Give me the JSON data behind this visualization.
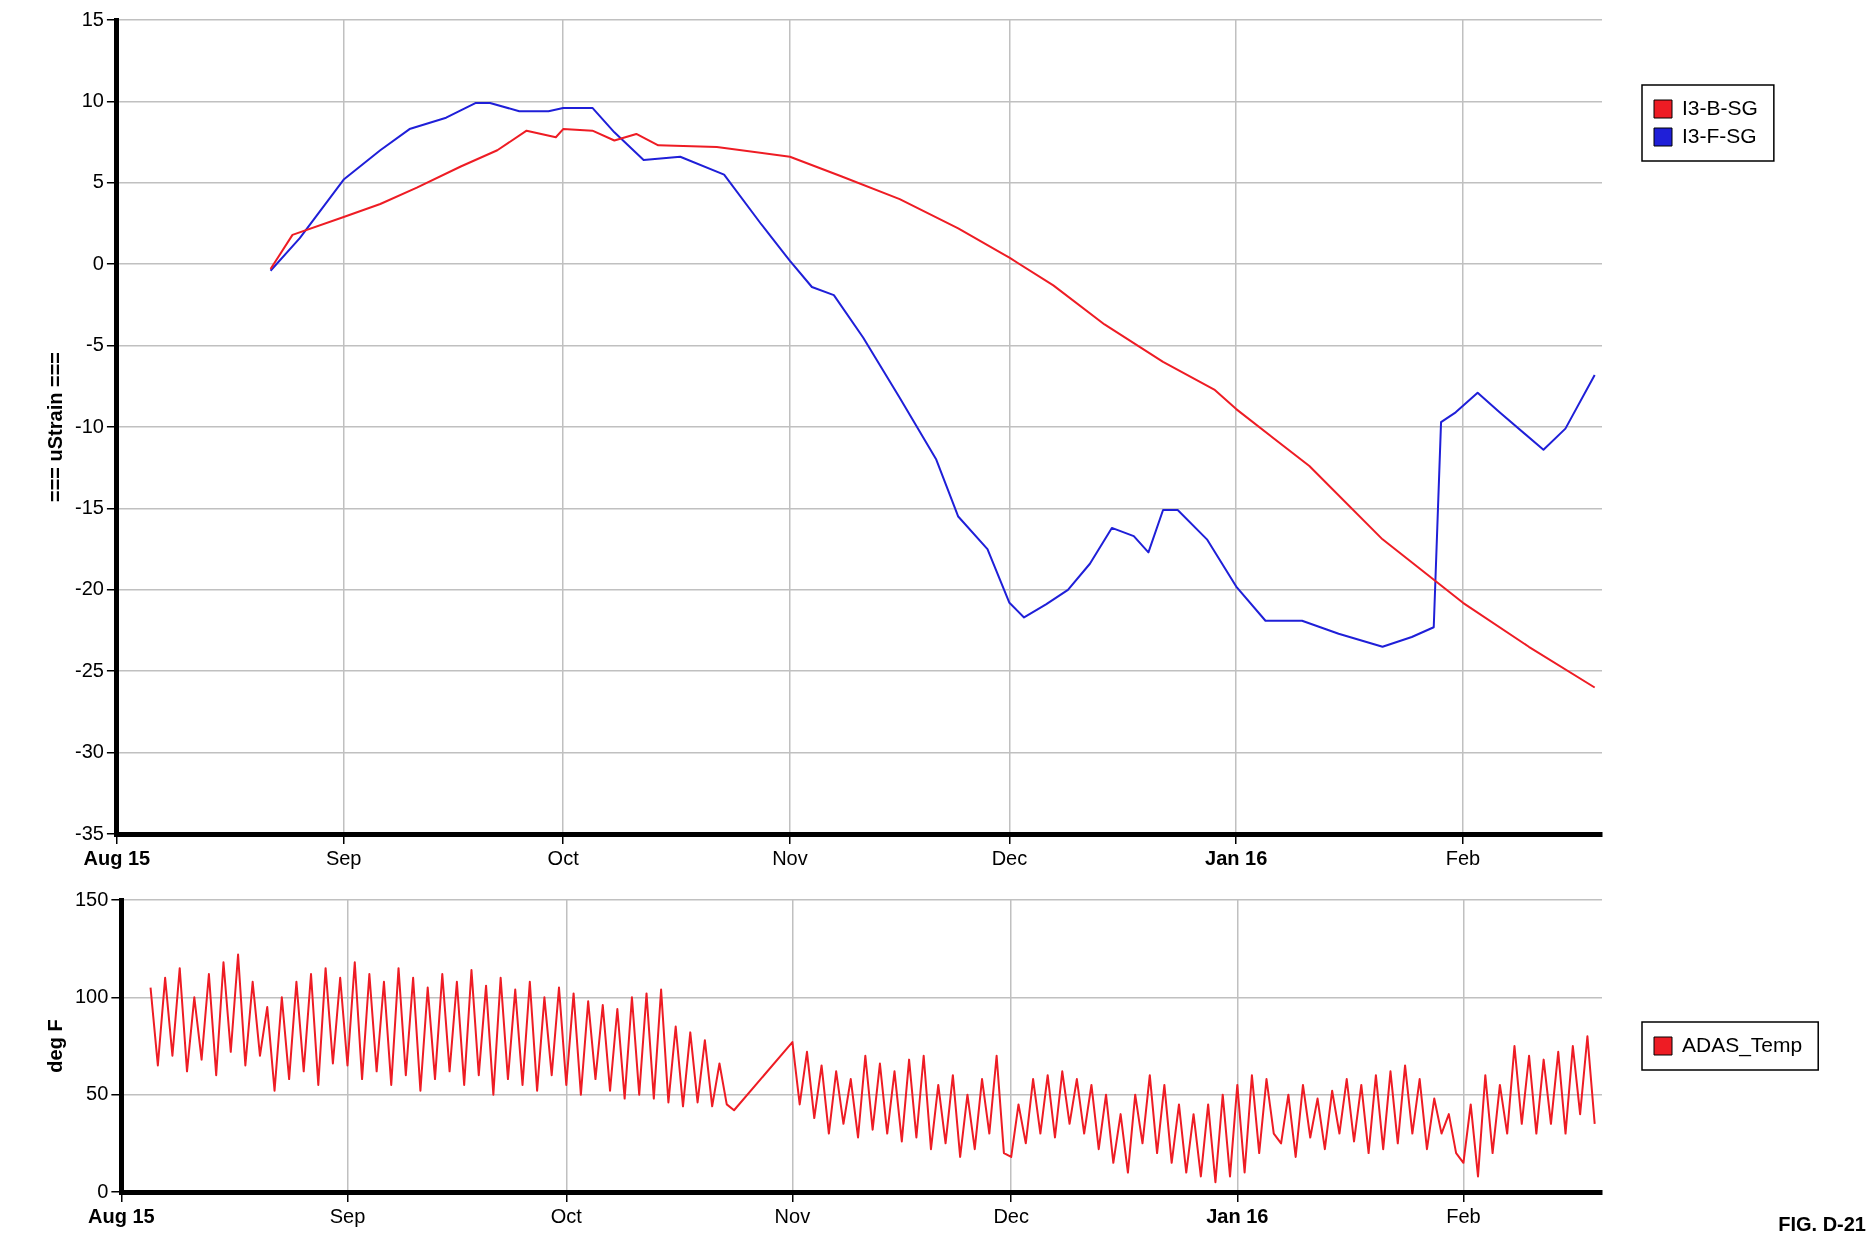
{
  "chart_data": [
    {
      "type": "line",
      "ylabel": "=== uStrain ===",
      "xlim": [
        "2015-08-01",
        "2016-02-20"
      ],
      "xticks": [
        {
          "value": "2015-08-01",
          "label": "Aug 15"
        },
        {
          "value": "2015-09-01",
          "label": "Sep"
        },
        {
          "value": "2015-10-01",
          "label": "Oct"
        },
        {
          "value": "2015-11-01",
          "label": "Nov"
        },
        {
          "value": "2015-12-01",
          "label": "Dec"
        },
        {
          "value": "2016-01-01",
          "label": "Jan 16"
        },
        {
          "value": "2016-02-01",
          "label": "Feb"
        }
      ],
      "ylim": [
        -35,
        15
      ],
      "yticks": [
        -35,
        -30,
        -25,
        -20,
        -15,
        -10,
        -5,
        0,
        5,
        10,
        15
      ],
      "grid": true,
      "legend": "top right",
      "marker": "none",
      "line_style": "solid",
      "series": [
        {
          "name": "I3-B-SG",
          "color": "#ee1c24",
          "x": [
            "2015-08-22",
            "2015-08-25",
            "2015-09-01",
            "2015-09-06",
            "2015-09-11",
            "2015-09-17",
            "2015-09-22",
            "2015-09-26",
            "2015-09-30",
            "2015-10-01",
            "2015-10-05",
            "2015-10-08",
            "2015-10-11",
            "2015-10-14",
            "2015-10-22",
            "2015-11-01",
            "2015-11-08",
            "2015-11-16",
            "2015-11-24",
            "2015-12-01",
            "2015-12-07",
            "2015-12-14",
            "2015-12-22",
            "2015-12-29",
            "2016-01-01",
            "2016-01-11",
            "2016-01-21",
            "2016-02-01",
            "2016-02-10",
            "2016-02-19"
          ],
          "values": [
            -0.3,
            1.8,
            2.9,
            3.7,
            4.7,
            6.0,
            7.0,
            8.2,
            7.8,
            8.3,
            8.2,
            7.6,
            8.0,
            7.3,
            7.2,
            6.6,
            5.4,
            4.0,
            2.2,
            0.4,
            -1.3,
            -3.7,
            -6.0,
            -7.7,
            -8.9,
            -12.4,
            -16.9,
            -20.8,
            -23.5,
            -26.0
          ]
        },
        {
          "name": "I3-F-SG",
          "color": "#1f1fd8",
          "x": [
            "2015-08-22",
            "2015-08-26",
            "2015-09-01",
            "2015-09-06",
            "2015-09-10",
            "2015-09-15",
            "2015-09-19",
            "2015-09-21",
            "2015-09-25",
            "2015-09-29",
            "2015-10-01",
            "2015-10-05",
            "2015-10-08",
            "2015-10-12",
            "2015-10-17",
            "2015-10-23",
            "2015-10-28",
            "2015-11-01",
            "2015-11-04",
            "2015-11-07",
            "2015-11-11",
            "2015-11-16",
            "2015-11-21",
            "2015-11-24",
            "2015-11-28",
            "2015-12-01",
            "2015-12-03",
            "2015-12-06",
            "2015-12-09",
            "2015-12-12",
            "2015-12-15",
            "2015-12-18",
            "2015-12-20",
            "2015-12-22",
            "2015-12-24",
            "2015-12-28",
            "2016-01-01",
            "2016-01-05",
            "2016-01-10",
            "2016-01-15",
            "2016-01-21",
            "2016-01-25",
            "2016-01-28",
            "2016-01-29",
            "2016-01-31",
            "2016-02-03",
            "2016-02-06",
            "2016-02-12",
            "2016-02-15",
            "2016-02-19"
          ],
          "values": [
            -0.4,
            1.6,
            5.2,
            7.0,
            8.3,
            9.0,
            9.9,
            9.9,
            9.4,
            9.4,
            9.6,
            9.6,
            8.1,
            6.4,
            6.6,
            5.5,
            2.5,
            0.2,
            -1.4,
            -1.9,
            -4.5,
            -8.2,
            -12.0,
            -15.5,
            -17.5,
            -20.8,
            -21.7,
            -20.9,
            -20.0,
            -18.4,
            -16.2,
            -16.7,
            -17.7,
            -15.1,
            -15.1,
            -16.9,
            -19.8,
            -21.9,
            -21.9,
            -22.7,
            -23.5,
            -22.9,
            -22.3,
            -9.7,
            -9.1,
            -7.9,
            -9.1,
            -11.4,
            -10.1,
            -6.8
          ]
        }
      ]
    },
    {
      "type": "line",
      "ylabel": "deg F",
      "xlim": [
        "2015-08-01",
        "2016-02-20"
      ],
      "xticks": [
        {
          "value": "2015-08-01",
          "label": "Aug 15"
        },
        {
          "value": "2015-09-01",
          "label": "Sep"
        },
        {
          "value": "2015-10-01",
          "label": "Oct"
        },
        {
          "value": "2015-11-01",
          "label": "Nov"
        },
        {
          "value": "2015-12-01",
          "label": "Dec"
        },
        {
          "value": "2016-01-01",
          "label": "Jan 16"
        },
        {
          "value": "2016-02-01",
          "label": "Feb"
        }
      ],
      "ylim": [
        0,
        150
      ],
      "yticks": [
        0,
        50,
        100,
        150
      ],
      "grid": true,
      "legend": "right",
      "marker": "none",
      "line_style": "solid",
      "annotations": [
        "FIG. D-21"
      ],
      "series": [
        {
          "name": "ADAS_Temp",
          "color": "#ee1c24",
          "x": [
            "2015-08-05",
            "2015-08-06",
            "2015-08-07",
            "2015-08-08",
            "2015-08-09",
            "2015-08-10",
            "2015-08-11",
            "2015-08-12",
            "2015-08-13",
            "2015-08-14",
            "2015-08-15",
            "2015-08-16",
            "2015-08-17",
            "2015-08-18",
            "2015-08-19",
            "2015-08-20",
            "2015-08-21",
            "2015-08-22",
            "2015-08-23",
            "2015-08-24",
            "2015-08-25",
            "2015-08-26",
            "2015-08-27",
            "2015-08-28",
            "2015-08-29",
            "2015-08-30",
            "2015-08-31",
            "2015-09-01",
            "2015-09-02",
            "2015-09-03",
            "2015-09-04",
            "2015-09-05",
            "2015-09-06",
            "2015-09-07",
            "2015-09-08",
            "2015-09-09",
            "2015-09-10",
            "2015-09-11",
            "2015-09-12",
            "2015-09-13",
            "2015-09-14",
            "2015-09-15",
            "2015-09-16",
            "2015-09-17",
            "2015-09-18",
            "2015-09-19",
            "2015-09-20",
            "2015-09-21",
            "2015-09-22",
            "2015-09-23",
            "2015-09-24",
            "2015-09-25",
            "2015-09-26",
            "2015-09-27",
            "2015-09-28",
            "2015-09-29",
            "2015-09-30",
            "2015-10-01",
            "2015-10-02",
            "2015-10-03",
            "2015-10-04",
            "2015-10-05",
            "2015-10-06",
            "2015-10-07",
            "2015-10-08",
            "2015-10-09",
            "2015-10-10",
            "2015-10-11",
            "2015-10-12",
            "2015-10-13",
            "2015-10-14",
            "2015-10-15",
            "2015-10-16",
            "2015-10-17",
            "2015-10-18",
            "2015-10-19",
            "2015-10-20",
            "2015-10-21",
            "2015-10-22",
            "2015-10-23",
            "2015-10-24",
            "2015-11-01",
            "2015-11-02",
            "2015-11-03",
            "2015-11-04",
            "2015-11-05",
            "2015-11-06",
            "2015-11-07",
            "2015-11-08",
            "2015-11-09",
            "2015-11-10",
            "2015-11-11",
            "2015-11-12",
            "2015-11-13",
            "2015-11-14",
            "2015-11-15",
            "2015-11-16",
            "2015-11-17",
            "2015-11-18",
            "2015-11-19",
            "2015-11-20",
            "2015-11-21",
            "2015-11-22",
            "2015-11-23",
            "2015-11-24",
            "2015-11-25",
            "2015-11-26",
            "2015-11-27",
            "2015-11-28",
            "2015-11-29",
            "2015-11-30",
            "2015-12-01",
            "2015-12-02",
            "2015-12-03",
            "2015-12-04",
            "2015-12-05",
            "2015-12-06",
            "2015-12-07",
            "2015-12-08",
            "2015-12-09",
            "2015-12-10",
            "2015-12-11",
            "2015-12-12",
            "2015-12-13",
            "2015-12-14",
            "2015-12-15",
            "2015-12-16",
            "2015-12-17",
            "2015-12-18",
            "2015-12-19",
            "2015-12-20",
            "2015-12-21",
            "2015-12-22",
            "2015-12-23",
            "2015-12-24",
            "2015-12-25",
            "2015-12-26",
            "2015-12-27",
            "2015-12-28",
            "2015-12-29",
            "2015-12-30",
            "2015-12-31",
            "2016-01-01",
            "2016-01-02",
            "2016-01-03",
            "2016-01-04",
            "2016-01-05",
            "2016-01-06",
            "2016-01-07",
            "2016-01-08",
            "2016-01-09",
            "2016-01-10",
            "2016-01-11",
            "2016-01-12",
            "2016-01-13",
            "2016-01-14",
            "2016-01-15",
            "2016-01-16",
            "2016-01-17",
            "2016-01-18",
            "2016-01-19",
            "2016-01-20",
            "2016-01-21",
            "2016-01-22",
            "2016-01-23",
            "2016-01-24",
            "2016-01-25",
            "2016-01-26",
            "2016-01-27",
            "2016-01-28",
            "2016-01-29",
            "2016-01-30",
            "2016-01-31",
            "2016-02-01",
            "2016-02-02",
            "2016-02-03",
            "2016-02-04",
            "2016-02-05",
            "2016-02-06",
            "2016-02-07",
            "2016-02-08",
            "2016-02-09",
            "2016-02-10",
            "2016-02-11",
            "2016-02-12",
            "2016-02-13",
            "2016-02-14",
            "2016-02-15",
            "2016-02-16",
            "2016-02-17",
            "2016-02-18",
            "2016-02-19"
          ],
          "values": [
            105,
            65,
            110,
            70,
            115,
            62,
            100,
            68,
            112,
            60,
            118,
            72,
            122,
            65,
            108,
            70,
            95,
            52,
            100,
            58,
            108,
            62,
            112,
            55,
            115,
            66,
            110,
            65,
            118,
            58,
            112,
            62,
            108,
            55,
            115,
            60,
            110,
            52,
            105,
            58,
            112,
            62,
            108,
            55,
            114,
            60,
            106,
            50,
            110,
            58,
            104,
            55,
            108,
            52,
            100,
            60,
            105,
            55,
            102,
            50,
            98,
            58,
            96,
            52,
            94,
            48,
            100,
            50,
            102,
            48,
            104,
            46,
            85,
            44,
            82,
            46,
            78,
            44,
            66,
            45,
            42,
            77,
            45,
            72,
            38,
            65,
            30,
            62,
            35,
            58,
            28,
            70,
            32,
            66,
            30,
            62,
            26,
            68,
            28,
            70,
            22,
            55,
            25,
            60,
            18,
            50,
            22,
            58,
            30,
            70,
            20,
            18,
            45,
            25,
            58,
            30,
            60,
            28,
            62,
            35,
            58,
            30,
            55,
            22,
            50,
            15,
            40,
            10,
            50,
            25,
            60,
            20,
            55,
            15,
            45,
            10,
            40,
            8,
            45,
            5,
            50,
            8,
            55,
            10,
            60,
            20,
            58,
            30,
            25,
            50,
            18,
            55,
            28,
            48,
            22,
            52,
            30,
            58,
            26,
            55,
            20,
            60,
            22,
            62,
            25,
            65,
            30,
            58,
            22,
            48,
            30,
            40,
            20,
            15,
            45,
            8,
            60,
            20,
            55,
            30,
            75,
            35,
            70,
            30,
            68,
            35,
            72,
            30,
            75,
            40,
            80,
            35
          ]
        }
      ]
    }
  ]
}
